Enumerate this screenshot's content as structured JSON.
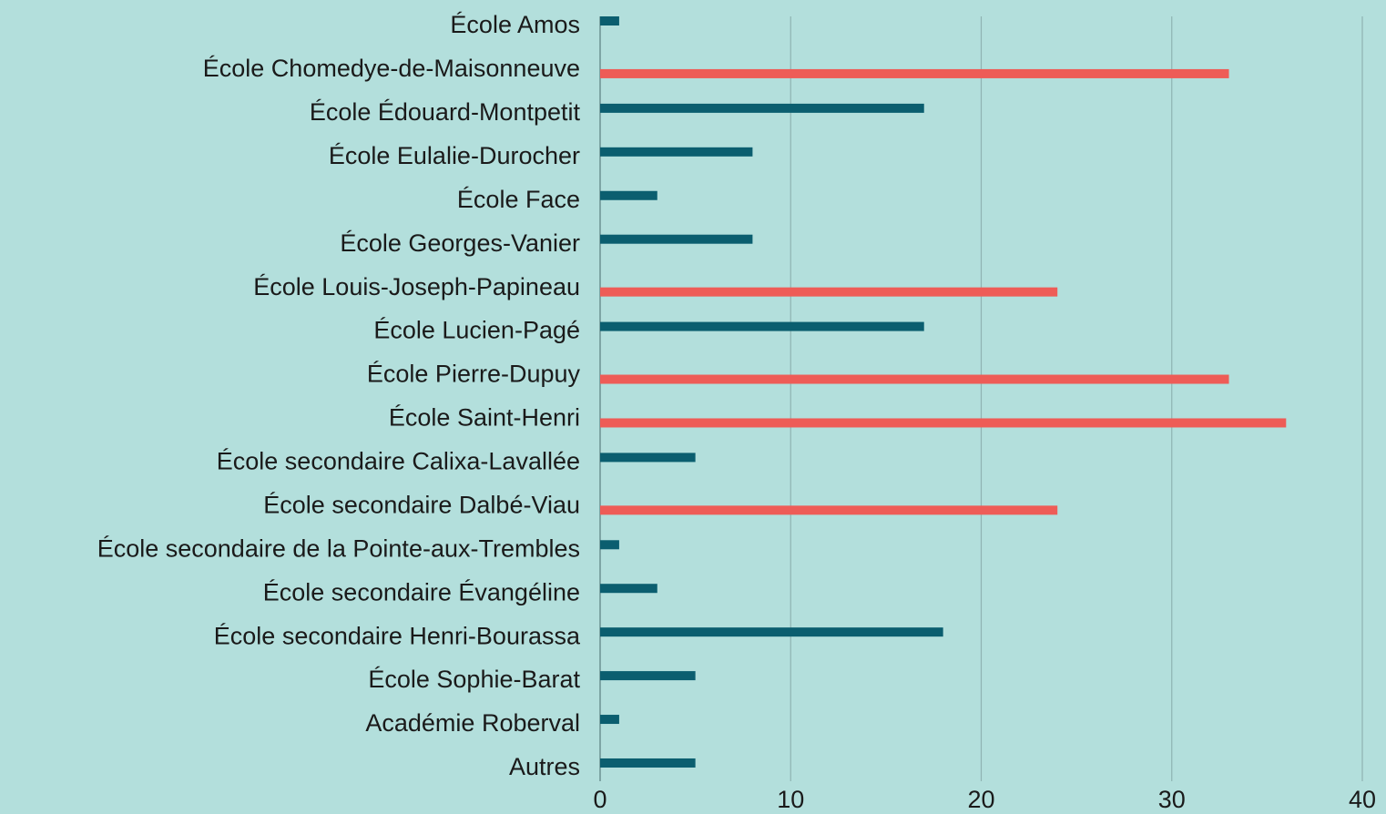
{
  "chart_data": {
    "type": "barh",
    "categories": [
      "École Amos",
      "École Chomedye-de-Maisonneuve",
      "École Édouard-Montpetit",
      "École Eulalie-Durocher",
      "École Face",
      "École Georges-Vanier",
      "École Louis-Joseph-Papineau",
      "École Lucien-Pagé",
      "École Pierre-Dupuy",
      "École Saint-Henri",
      "École secondaire Calixa-Lavallée",
      "École secondaire Dalbé-Viau",
      "École secondaire de la Pointe-aux-Trembles",
      "École secondaire Évangéline",
      "École secondaire Henri-Bourassa",
      "École Sophie-Barat",
      "Académie Roberval",
      "Autres"
    ],
    "series": [
      {
        "color": "#0b5e6f",
        "values": [
          1,
          null,
          17,
          8,
          3,
          8,
          null,
          17,
          null,
          null,
          5,
          null,
          1,
          3,
          18,
          5,
          1,
          5
        ]
      },
      {
        "color": "#ee5c57",
        "values": [
          null,
          33,
          null,
          null,
          null,
          null,
          24,
          null,
          33,
          36,
          null,
          24,
          null,
          null,
          null,
          null,
          null,
          null
        ]
      }
    ],
    "xlim": [
      0,
      40
    ],
    "xticks": [
      0,
      10,
      20,
      30,
      40
    ],
    "grid": true
  }
}
